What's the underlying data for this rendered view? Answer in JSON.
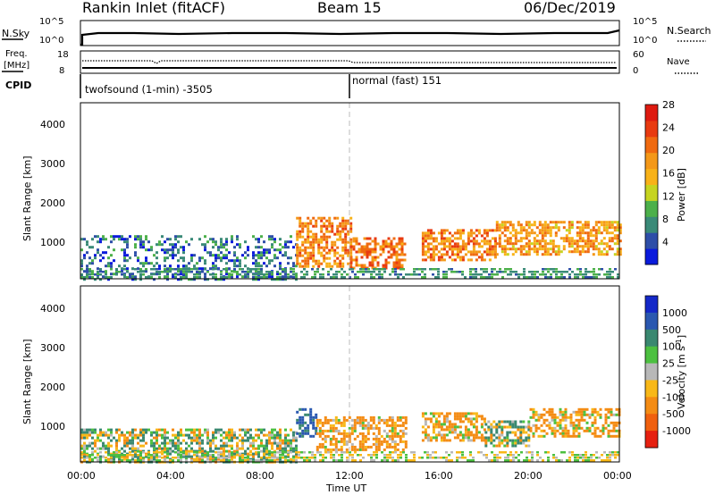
{
  "header": {
    "station": "Rankin Inlet (fitACF)",
    "beam": "Beam 15",
    "date": "06/Dec/2019"
  },
  "nsky_panel": {
    "label": "N.Sky",
    "left_ticks": [
      "10^5",
      "10^0"
    ],
    "right_ticks": [
      "10^5",
      "10^0"
    ],
    "right_label": "N.Search"
  },
  "freq_panel": {
    "label_line1": "Freq.",
    "label_line2": "[MHz]",
    "left_ticks": [
      "18",
      "8"
    ],
    "right_ticks": [
      "60",
      "0"
    ],
    "right_label": "Nave"
  },
  "cpid": {
    "label": "CPID",
    "segments": [
      {
        "text": "twofsound (1-min) -3505",
        "start_hour": 0
      },
      {
        "text": "normal (fast) 151",
        "start_hour": 12
      }
    ]
  },
  "x_axis": {
    "label": "Time UT",
    "ticks": [
      "00:00",
      "04:00",
      "08:00",
      "12:00",
      "16:00",
      "20:00",
      "00:00"
    ]
  },
  "chart_data": [
    {
      "type": "heatmap",
      "title": "Power",
      "ylabel": "Slant Range [km]",
      "y_ticks": [
        "1000",
        "2000",
        "3000",
        "4000"
      ],
      "colorbar_label": "Power [dB]",
      "colorbar_ticks": [
        "4",
        "8",
        "12",
        "16",
        "20",
        "24",
        "28"
      ],
      "colorbar_colors": [
        "#0a1adc",
        "#2e4ea8",
        "#3a8a78",
        "#4cb04a",
        "#c6d420",
        "#f8b218",
        "#f49818",
        "#f06a10",
        "#e83a10",
        "#de1a10"
      ],
      "x_range_hours": [
        0,
        24
      ],
      "y_range_km": [
        180,
        4500
      ],
      "regions": [
        {
          "t0": 0.0,
          "t1": 9.6,
          "r0": 180,
          "r1": 1250,
          "value_db": 6
        },
        {
          "t0": 9.6,
          "t1": 12.0,
          "r0": 500,
          "r1": 1700,
          "value_db": 20
        },
        {
          "t0": 12.0,
          "t1": 14.5,
          "r0": 450,
          "r1": 1200,
          "value_db": 22
        },
        {
          "t0": 15.2,
          "t1": 18.5,
          "r0": 650,
          "r1": 1400,
          "value_db": 21
        },
        {
          "t0": 18.5,
          "t1": 24.0,
          "r0": 800,
          "r1": 1600,
          "value_db": 19
        }
      ]
    },
    {
      "type": "heatmap",
      "title": "Velocity",
      "ylabel": "Slant Range [km]",
      "y_ticks": [
        "1000",
        "2000",
        "3000",
        "4000"
      ],
      "colorbar_label": "Velocity [m s^-1]",
      "colorbar_ticks": [
        "1000",
        "500",
        "100",
        "25",
        "-25",
        "-100",
        "-500",
        "-1000"
      ],
      "colorbar_colors": [
        "#1428c8",
        "#2a58b0",
        "#3a8870",
        "#4cc040",
        "#b8b8b8",
        "#f8b818",
        "#f48c14",
        "#f0600e",
        "#e62010"
      ],
      "x_range_hours": [
        0,
        24
      ],
      "y_range_km": [
        180,
        4500
      ],
      "regions": [
        {
          "t0": 0.0,
          "t1": 9.6,
          "r0": 180,
          "r1": 1000,
          "value_ms": 60
        },
        {
          "t0": 9.6,
          "t1": 10.5,
          "r0": 800,
          "r1": 1500,
          "value_ms": 600
        },
        {
          "t0": 10.5,
          "t1": 14.5,
          "r0": 500,
          "r1": 1300,
          "value_ms": -200
        },
        {
          "t0": 15.2,
          "t1": 18.0,
          "r0": 700,
          "r1": 1400,
          "value_ms": -150
        },
        {
          "t0": 18.0,
          "t1": 20.0,
          "r0": 600,
          "r1": 1200,
          "value_ms": 60
        },
        {
          "t0": 20.0,
          "t1": 24.0,
          "r0": 800,
          "r1": 1500,
          "value_ms": -150
        }
      ]
    }
  ]
}
